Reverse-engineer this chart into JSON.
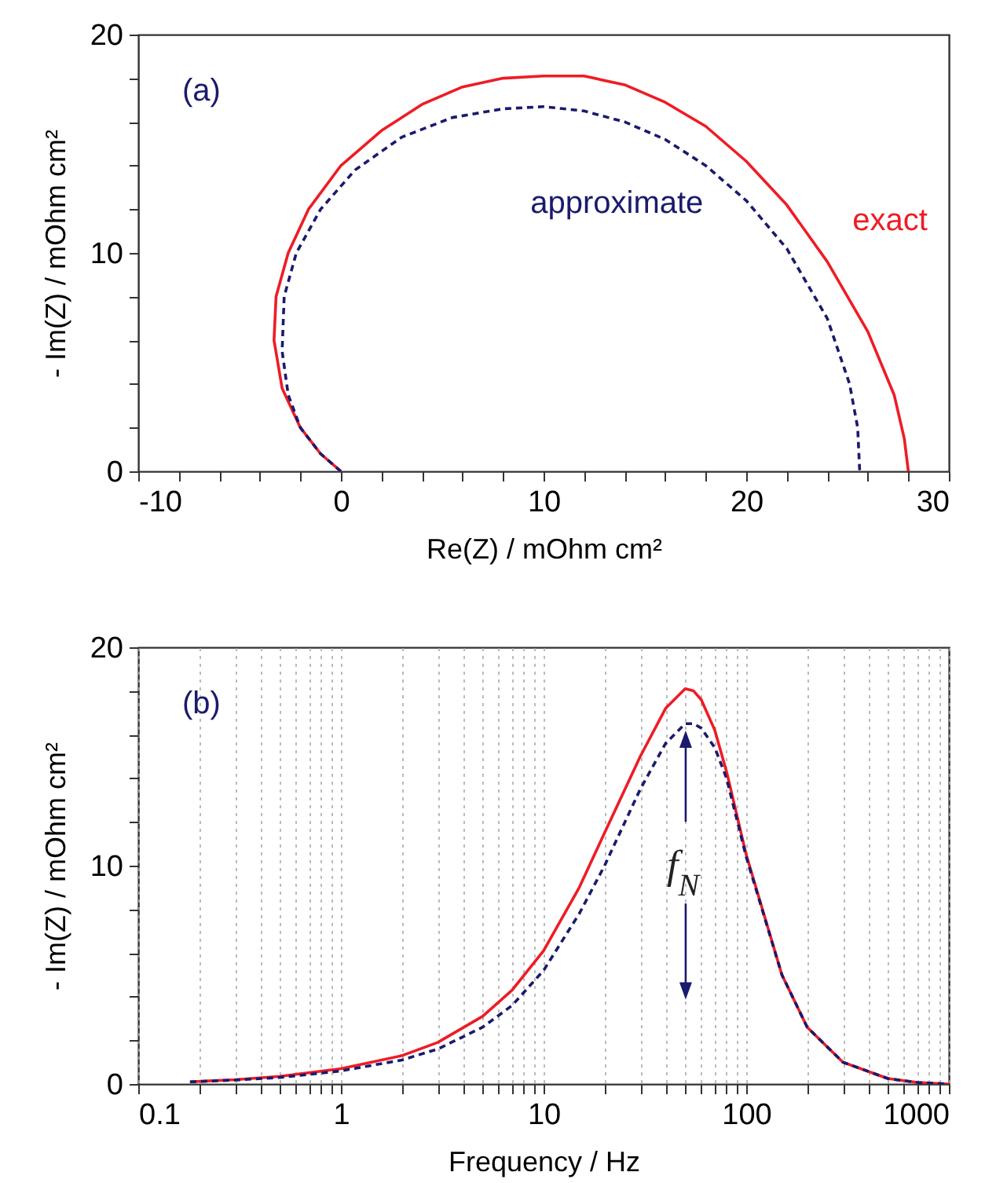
{
  "chart_data": [
    {
      "type": "line",
      "xlabel": "Re(Z)  / mOhm cm²",
      "ylabel": "- Im(Z) / mOhm cm²",
      "annotations": [
        "(a)"
      ],
      "xlim": [
        -10,
        30
      ],
      "xticks": [
        -10,
        {
          "value": -8,
          "label": null
        },
        {
          "value": -6,
          "label": null
        },
        {
          "value": -4,
          "label": null
        },
        {
          "value": -2,
          "label": null
        },
        0,
        {
          "value": 2,
          "label": null
        },
        {
          "value": 4,
          "label": null
        },
        {
          "value": 6,
          "label": null
        },
        {
          "value": 8,
          "label": null
        },
        10,
        {
          "value": 12,
          "label": null
        },
        {
          "value": 14,
          "label": null
        },
        {
          "value": 16,
          "label": null
        },
        {
          "value": 18,
          "label": null
        },
        20,
        {
          "value": 22,
          "label": null
        },
        {
          "value": 24,
          "label": null
        },
        {
          "value": 26,
          "label": null
        },
        {
          "value": 28,
          "label": null
        },
        30
      ],
      "ylim": [
        0,
        20
      ],
      "yticks": [
        0,
        {
          "value": 2,
          "label": null
        },
        {
          "value": 4,
          "label": null
        },
        {
          "value": 6,
          "label": null
        },
        {
          "value": 8,
          "label": null
        },
        10,
        {
          "value": 12,
          "label": null
        },
        {
          "value": 14,
          "label": null
        },
        {
          "value": 16,
          "label": null
        },
        {
          "value": 18,
          "label": null
        },
        20
      ],
      "series": [
        {
          "name": "exact",
          "color": "#ee1c25",
          "line_style": "solid",
          "x": [
            0,
            -1,
            -2,
            -2.9,
            -3.3,
            -3.2,
            -2.6,
            -1.6,
            0,
            2,
            4,
            6,
            8,
            10,
            12,
            14,
            16,
            18,
            20,
            22,
            24,
            26,
            27.3,
            27.8,
            28
          ],
          "values": [
            0,
            0.8,
            2,
            3.8,
            6,
            8,
            10,
            12,
            14,
            15.6,
            16.8,
            17.6,
            18,
            18.1,
            18.1,
            17.7,
            16.9,
            15.8,
            14.2,
            12.2,
            9.6,
            6.4,
            3.5,
            1.5,
            0
          ]
        },
        {
          "name": "approximate",
          "color": "#1a1a6e",
          "line_style": "dashed",
          "x": [
            0,
            -1,
            -2,
            -2.6,
            -2.9,
            -2.8,
            -2.2,
            -1,
            0.7,
            3,
            5.5,
            8,
            10,
            12,
            14,
            16,
            18,
            20,
            22,
            24,
            25.1,
            25.5,
            25.6
          ],
          "values": [
            0,
            0.8,
            2,
            3.5,
            5.5,
            8,
            10,
            12,
            13.8,
            15.3,
            16.2,
            16.6,
            16.7,
            16.5,
            16,
            15.2,
            14,
            12.4,
            10.2,
            7,
            4,
            2,
            0
          ]
        }
      ]
    },
    {
      "type": "line",
      "xlabel": "Frequency / Hz",
      "ylabel": "- Im(Z) / mOhm cm²",
      "annotations": [
        "(b)",
        "f$_{N}$"
      ],
      "log": "x",
      "grid": "x",
      "xlim": [
        0.1,
        1000
      ],
      "xticks": [
        0.1,
        {
          "value": 0.2,
          "label": null
        },
        {
          "value": 0.3,
          "label": null
        },
        {
          "value": 0.4,
          "label": null
        },
        {
          "value": 0.5,
          "label": null
        },
        {
          "value": 0.6,
          "label": null
        },
        {
          "value": 0.7,
          "label": null
        },
        {
          "value": 0.8,
          "label": null
        },
        {
          "value": 0.9,
          "label": null
        },
        1,
        {
          "value": 2,
          "label": null
        },
        {
          "value": 3,
          "label": null
        },
        {
          "value": 4,
          "label": null
        },
        {
          "value": 5,
          "label": null
        },
        {
          "value": 6,
          "label": null
        },
        {
          "value": 7,
          "label": null
        },
        {
          "value": 8,
          "label": null
        },
        {
          "value": 9,
          "label": null
        },
        10,
        {
          "value": 20,
          "label": null
        },
        {
          "value": 30,
          "label": null
        },
        {
          "value": 40,
          "label": null
        },
        {
          "value": 50,
          "label": null
        },
        {
          "value": 60,
          "label": null
        },
        {
          "value": 70,
          "label": null
        },
        {
          "value": 80,
          "label": null
        },
        {
          "value": 90,
          "label": null
        },
        100,
        {
          "value": 200,
          "label": null
        },
        {
          "value": 300,
          "label": null
        },
        {
          "value": 400,
          "label": null
        },
        {
          "value": 500,
          "label": null
        },
        {
          "value": 600,
          "label": null
        },
        {
          "value": 700,
          "label": null
        },
        {
          "value": 800,
          "label": null
        },
        {
          "value": 900,
          "label": null
        },
        1000
      ],
      "ylim": [
        0,
        20
      ],
      "yticks": [
        0,
        {
          "value": 2,
          "label": null
        },
        {
          "value": 4,
          "label": null
        },
        {
          "value": 6,
          "label": null
        },
        {
          "value": 8,
          "label": null
        },
        10,
        {
          "value": 12,
          "label": null
        },
        {
          "value": 14,
          "label": null
        },
        {
          "value": 16,
          "label": null
        },
        {
          "value": 18,
          "label": null
        },
        20
      ],
      "series": [
        {
          "color": "#ee1c25",
          "line_style": "solid",
          "x": [
            0.18,
            0.3,
            0.5,
            1,
            2,
            3,
            5,
            7,
            10,
            15,
            20,
            30,
            40,
            50,
            55,
            60,
            70,
            80,
            100,
            150,
            200,
            300,
            500,
            700,
            1000
          ],
          "values": [
            0.1,
            0.2,
            0.35,
            0.7,
            1.3,
            1.9,
            3.1,
            4.3,
            6.1,
            9,
            11.5,
            15,
            17.2,
            18.1,
            18,
            17.6,
            16.2,
            14.3,
            10.5,
            5,
            2.6,
            1,
            0.25,
            0.07,
            0
          ]
        },
        {
          "color": "#1a1a6e",
          "line_style": "dashed",
          "x": [
            0.18,
            0.3,
            0.5,
            1,
            2,
            3,
            5,
            7,
            10,
            15,
            20,
            30,
            40,
            50,
            55,
            60,
            70,
            80,
            100,
            150,
            200,
            300,
            500,
            700,
            1000
          ],
          "values": [
            0.1,
            0.18,
            0.3,
            0.6,
            1.1,
            1.6,
            2.6,
            3.6,
            5.2,
            7.8,
            10,
            13.5,
            15.6,
            16.5,
            16.5,
            16.3,
            15.4,
            14,
            10.4,
            5,
            2.6,
            1,
            0.25,
            0.07,
            0
          ]
        }
      ]
    }
  ]
}
